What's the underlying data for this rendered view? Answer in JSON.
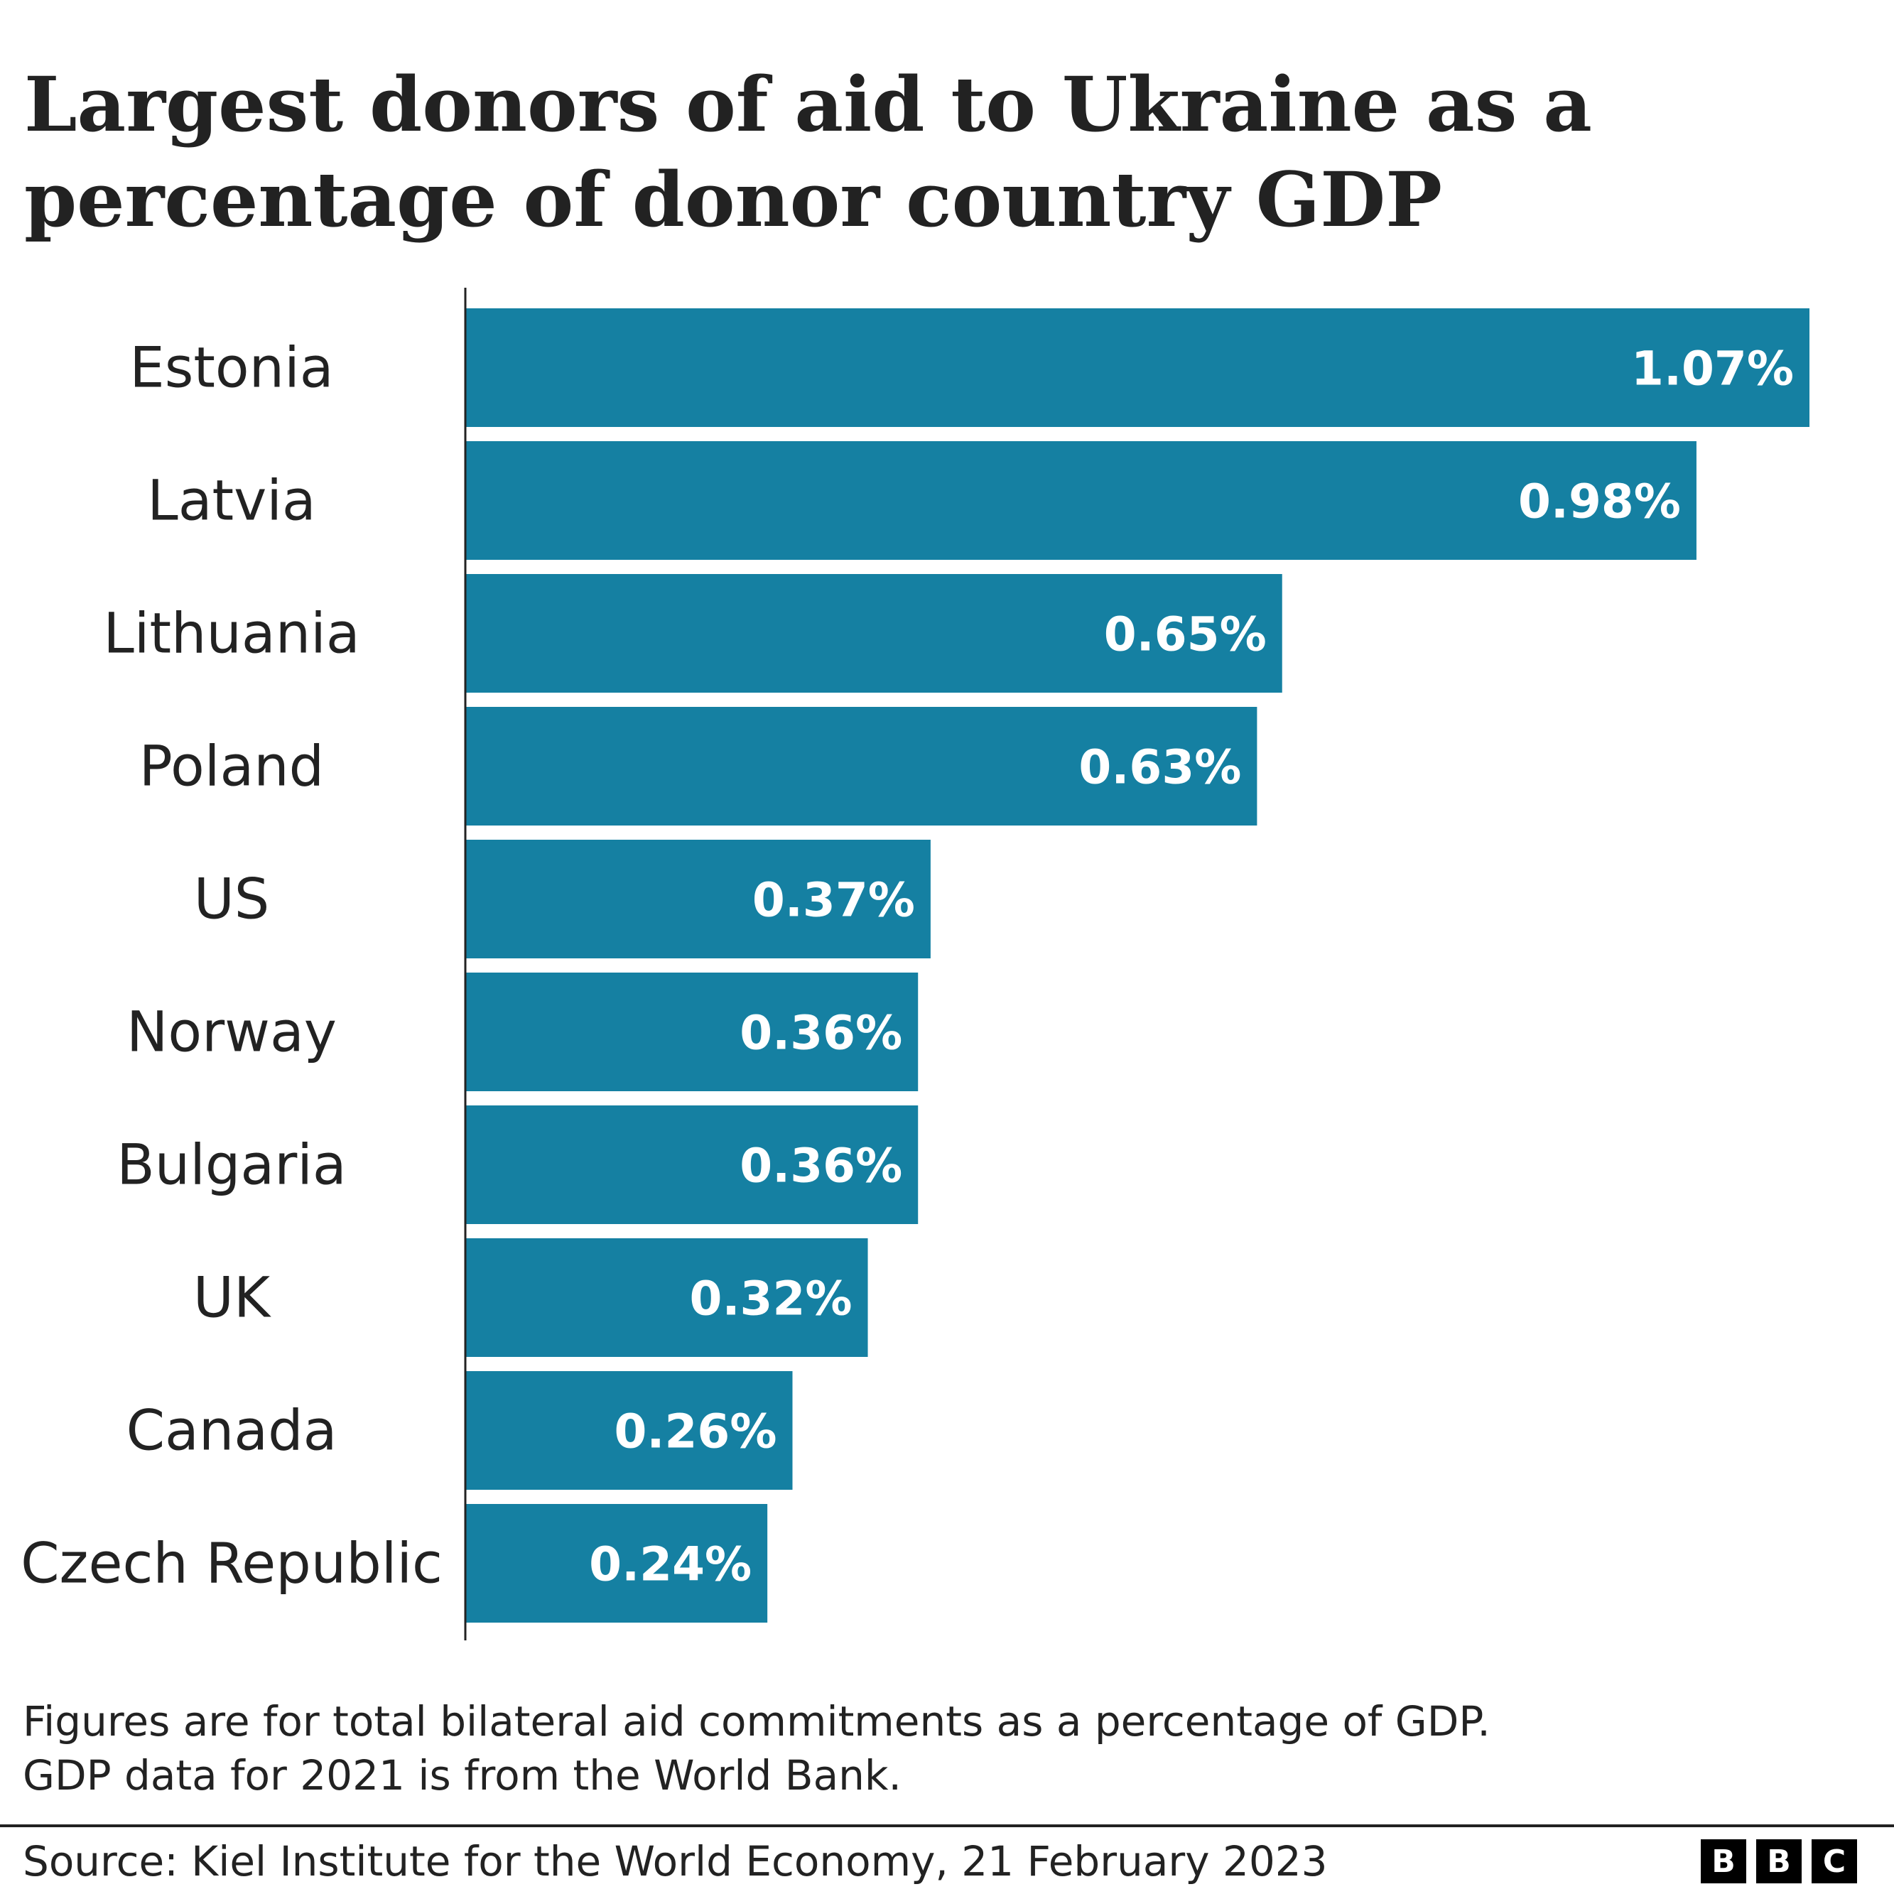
{
  "chart_data": {
    "type": "bar",
    "orientation": "horizontal",
    "title": "Largest donors of aid to Ukraine as a percentage of donor country GDP",
    "categories": [
      "Estonia",
      "Latvia",
      "Lithuania",
      "Poland",
      "US",
      "Norway",
      "Bulgaria",
      "UK",
      "Canada",
      "Czech Republic"
    ],
    "values": [
      1.07,
      0.98,
      0.65,
      0.63,
      0.37,
      0.36,
      0.36,
      0.32,
      0.26,
      0.24
    ],
    "value_labels": [
      "1.07%",
      "0.98%",
      "0.65%",
      "0.63%",
      "0.37%",
      "0.36%",
      "0.36%",
      "0.32%",
      "0.26%",
      "0.24%"
    ],
    "xlabel": "",
    "ylabel": "",
    "xlim": [
      0,
      1.07
    ],
    "grid": false,
    "bar_color": "#1580a2"
  },
  "footnote": [
    "Figures are for total bilateral aid commitments as a percentage of GDP.",
    "GDP data for 2021 is from the World Bank."
  ],
  "source": "Source: Kiel Institute for the World Economy, 21 February 2023",
  "logo": [
    "B",
    "B",
    "C"
  ]
}
